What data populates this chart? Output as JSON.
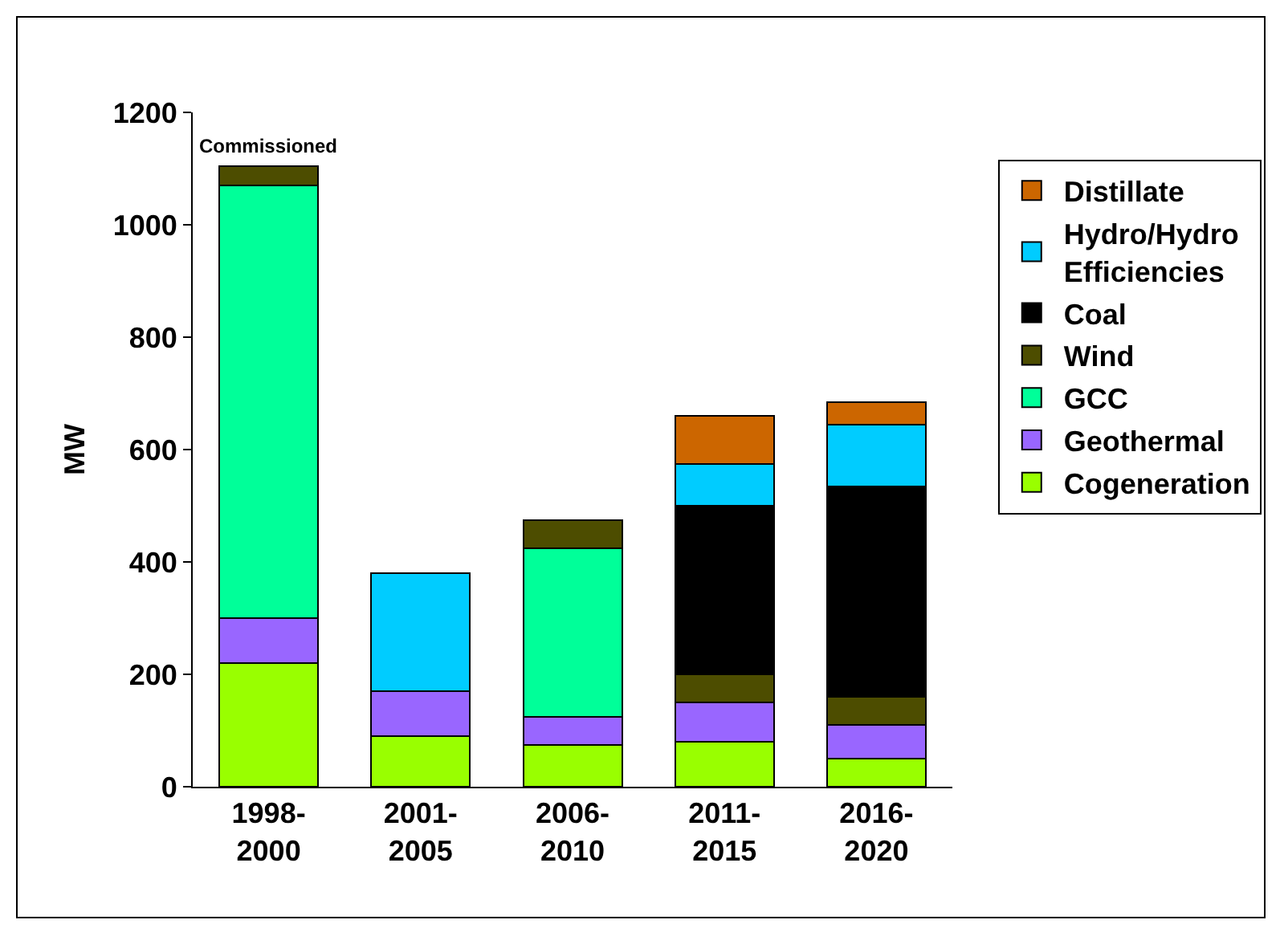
{
  "chart_data": {
    "type": "bar",
    "stacked": true,
    "ylabel": "MW",
    "categories": [
      "1998-\n2000",
      "2001-\n2005",
      "2006-\n2010",
      "2011-\n2015",
      "2016-\n2020"
    ],
    "series": [
      {
        "name": "Cogeneration",
        "color": "#99ff00",
        "values": [
          220,
          90,
          75,
          80,
          50
        ]
      },
      {
        "name": "Geothermal",
        "color": "#9966ff",
        "values": [
          80,
          80,
          50,
          70,
          60
        ]
      },
      {
        "name": "GCC",
        "color": "#00ff99",
        "values": [
          770,
          null,
          300,
          null,
          null
        ]
      },
      {
        "name": "Wind",
        "color": "#4d4d00",
        "values": [
          35,
          null,
          50,
          50,
          50
        ]
      },
      {
        "name": "Coal",
        "color": "#000000",
        "values": [
          null,
          null,
          null,
          300,
          375
        ]
      },
      {
        "name": "Hydro/Hydro Efficiencies",
        "color": "#00ccff",
        "values": [
          null,
          210,
          null,
          75,
          110
        ]
      },
      {
        "name": "Distillate",
        "color": "#cc6600",
        "values": [
          null,
          null,
          null,
          85,
          40
        ]
      }
    ],
    "ylim": [
      0,
      1200
    ],
    "yticks": [
      0,
      200,
      400,
      600,
      800,
      1000,
      1200
    ],
    "grid": false,
    "legend": "right",
    "annotations": [
      {
        "text": "Commissioned",
        "x": "1998-\n2000",
        "y": 1105
      }
    ]
  }
}
